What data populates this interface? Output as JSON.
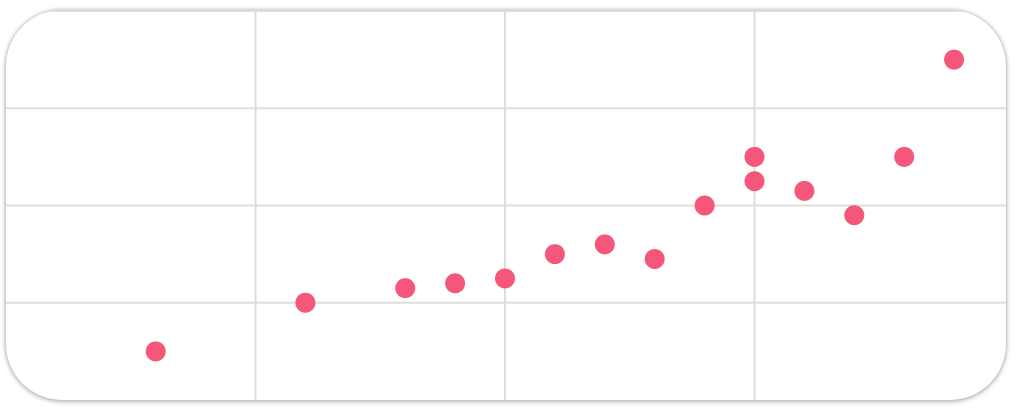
{
  "chart_data": {
    "type": "scatter",
    "title": "",
    "xlabel": "",
    "ylabel": "",
    "xlim": [
      0,
      20
    ],
    "ylim": [
      0,
      4
    ],
    "x_gridlines": [
      5,
      10,
      15
    ],
    "y_gridlines": [
      1,
      2,
      3,
      4
    ],
    "grid": true,
    "marker_color": "#f4577a",
    "grid_color": "#dddddd",
    "series": [
      {
        "points": [
          {
            "x": 3,
            "y": 0.5
          },
          {
            "x": 6,
            "y": 1.0
          },
          {
            "x": 8,
            "y": 1.15
          },
          {
            "x": 9,
            "y": 1.2
          },
          {
            "x": 10,
            "y": 1.25
          },
          {
            "x": 11,
            "y": 1.5
          },
          {
            "x": 12,
            "y": 1.6
          },
          {
            "x": 13,
            "y": 1.45
          },
          {
            "x": 14,
            "y": 2.0
          },
          {
            "x": 15,
            "y": 2.25
          },
          {
            "x": 15,
            "y": 2.5
          },
          {
            "x": 16,
            "y": 2.15
          },
          {
            "x": 17,
            "y": 1.9
          },
          {
            "x": 18,
            "y": 2.5
          },
          {
            "x": 19,
            "y": 3.5
          }
        ]
      }
    ]
  }
}
